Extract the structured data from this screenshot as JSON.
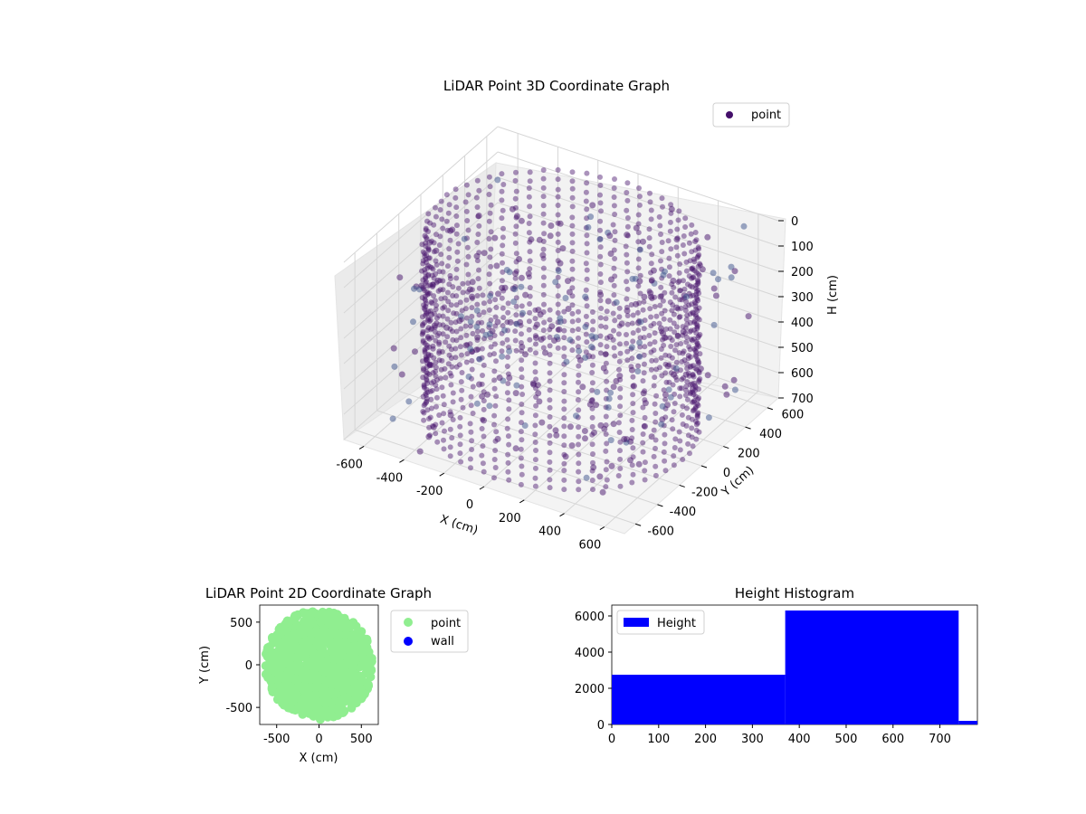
{
  "chart_data": [
    {
      "type": "scatter",
      "projection": "3d",
      "title": "LiDAR Point 3D Coordinate Graph",
      "xlabel": "X (cm)",
      "ylabel": "Y (cm)",
      "zlabel": "H (cm)",
      "xlim": [
        -700,
        700
      ],
      "ylim": [
        -700,
        700
      ],
      "zlim": [
        0,
        700
      ],
      "z_inverted": true,
      "grid": true,
      "legend": "upper-right",
      "x_ticks": [
        "-600",
        "-400",
        "-200",
        "0",
        "200",
        "400",
        "600"
      ],
      "y_ticks": [
        "-600",
        "-400",
        "-200",
        "0",
        "200",
        "400",
        "600"
      ],
      "z_ticks": [
        "0",
        "100",
        "200",
        "300",
        "400",
        "500",
        "600",
        "700"
      ],
      "series": [
        {
          "name": "point",
          "color": "#440f6a",
          "description_shape": "dense cylindrical ring of points radius ~600, height 0-700, plus scattered outliers",
          "sample_points": [
            {
              "x": -600,
              "y": 0,
              "h": 0
            },
            {
              "x": 0,
              "y": 600,
              "h": 0
            },
            {
              "x": 600,
              "y": 0,
              "h": 0
            },
            {
              "x": 0,
              "y": -600,
              "h": 0
            },
            {
              "x": -600,
              "y": 0,
              "h": 700
            },
            {
              "x": 0,
              "y": 600,
              "h": 700
            },
            {
              "x": 600,
              "y": 0,
              "h": 700
            },
            {
              "x": 0,
              "y": -600,
              "h": 700
            },
            {
              "x": 200,
              "y": 400,
              "h": 300
            },
            {
              "x": -300,
              "y": -200,
              "h": 600
            }
          ]
        }
      ]
    },
    {
      "type": "scatter",
      "title": "LiDAR Point 2D Coordinate Graph",
      "xlabel": "X (cm)",
      "ylabel": "Y (cm)",
      "xlim": [
        -700,
        700
      ],
      "ylim": [
        -700,
        700
      ],
      "x_ticks": [
        "-500",
        "0",
        "500"
      ],
      "y_ticks": [
        "-500",
        "0",
        "500"
      ],
      "legend": "outside-right",
      "series": [
        {
          "name": "point",
          "color": "#90ee90"
        },
        {
          "name": "wall",
          "color": "#0000ff"
        }
      ]
    },
    {
      "type": "bar",
      "title": "Height Histogram",
      "xlim": [
        0,
        780
      ],
      "ylim": [
        0,
        6600
      ],
      "x_ticks": [
        "0",
        "100",
        "200",
        "300",
        "400",
        "500",
        "600",
        "700"
      ],
      "y_ticks": [
        "0",
        "2000",
        "4000",
        "6000"
      ],
      "legend": "upper-left",
      "series": [
        {
          "name": "Height",
          "color": "#0000ff",
          "bins": [
            {
              "start": 0,
              "end": 370,
              "count": 2750
            },
            {
              "start": 370,
              "end": 740,
              "count": 6300
            },
            {
              "start": 740,
              "end": 780,
              "count": 200
            }
          ]
        }
      ]
    }
  ]
}
